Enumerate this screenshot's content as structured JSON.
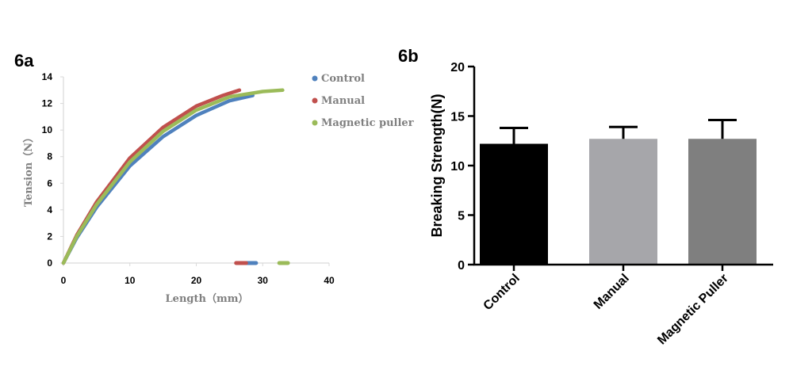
{
  "chart_data": [
    {
      "id": "6a",
      "panel_label": "6a",
      "type": "line",
      "xlabel": "Length（mm）",
      "ylabel": "Tension（N）",
      "xlim": [
        0,
        40
      ],
      "ylim": [
        0,
        14
      ],
      "xticks": [
        "0",
        "10",
        "20",
        "30",
        "40"
      ],
      "yticks": [
        "0",
        "2",
        "4",
        "6",
        "8",
        "10",
        "12",
        "14"
      ],
      "legend_position": "top-right",
      "series": [
        {
          "name": "Control",
          "color": "#4f81bd",
          "points": [
            [
              0,
              0
            ],
            [
              2,
              1.9
            ],
            [
              5,
              4.2
            ],
            [
              10,
              7.3
            ],
            [
              15,
              9.5
            ],
            [
              20,
              11.1
            ],
            [
              25,
              12.2
            ],
            [
              28.5,
              12.6
            ]
          ],
          "break_points": [
            [
              27,
              0
            ],
            [
              29,
              0
            ]
          ]
        },
        {
          "name": "Manual",
          "color": "#c0504d",
          "points": [
            [
              0,
              0
            ],
            [
              2,
              2.1
            ],
            [
              5,
              4.6
            ],
            [
              10,
              7.9
            ],
            [
              15,
              10.2
            ],
            [
              20,
              11.8
            ],
            [
              24,
              12.6
            ],
            [
              26.5,
              13.0
            ]
          ],
          "break_points": [
            [
              26,
              0
            ],
            [
              27.5,
              0
            ]
          ]
        },
        {
          "name": "Magnetic puller",
          "color": "#9bbb59",
          "points": [
            [
              0,
              0
            ],
            [
              2,
              2.0
            ],
            [
              5,
              4.4
            ],
            [
              10,
              7.6
            ],
            [
              15,
              9.9
            ],
            [
              20,
              11.5
            ],
            [
              25,
              12.5
            ],
            [
              30,
              12.9
            ],
            [
              33,
              13.0
            ]
          ],
          "break_points": [
            [
              32.5,
              0
            ],
            [
              33.8,
              0
            ]
          ]
        }
      ]
    },
    {
      "id": "6b",
      "panel_label": "6b",
      "type": "bar",
      "ylabel": "Breaking Strength(N)",
      "ylim": [
        0,
        20
      ],
      "yticks": [
        "0",
        "5",
        "10",
        "15",
        "20"
      ],
      "categories": [
        "Control",
        "Manual",
        "Magnetic Puller"
      ],
      "values": [
        12.2,
        12.7,
        12.7
      ],
      "errors": [
        1.6,
        1.2,
        1.9
      ],
      "colors": [
        "#000000",
        "#a6a6aa",
        "#7f7f7f"
      ]
    }
  ]
}
